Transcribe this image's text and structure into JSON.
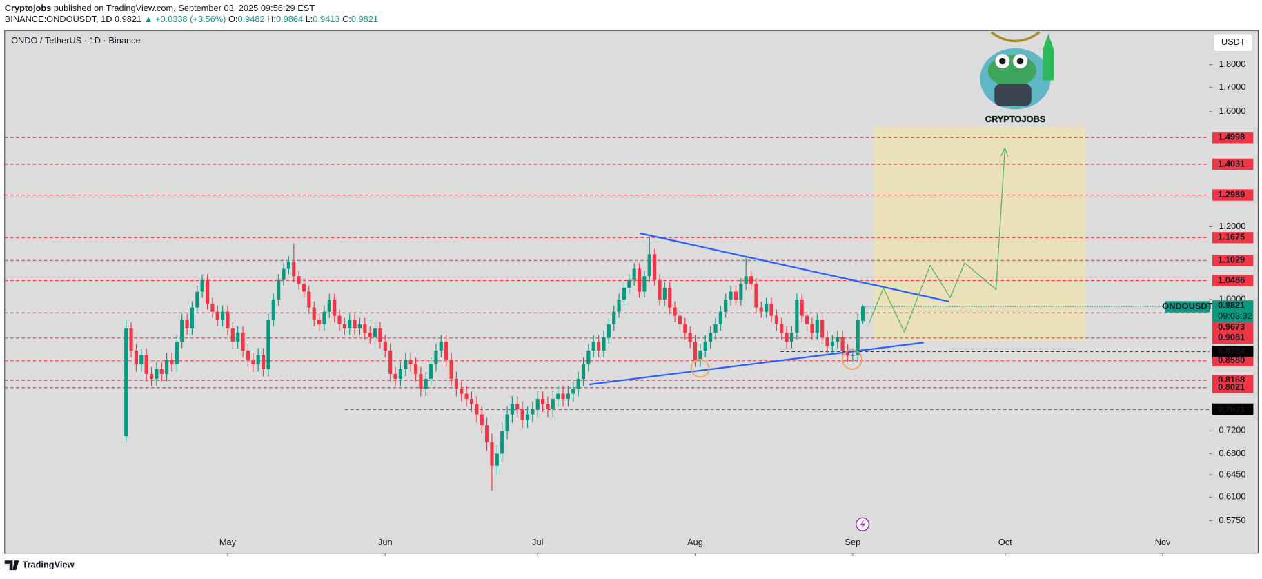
{
  "header": {
    "author": "Cryptojobs",
    "published": "published on TradingView.com, September 03, 2025 09:56:29 EST",
    "symbol": "BINANCE:ONDOUSDT, 1D",
    "change": "▲ +0.0338 (+3.56%)",
    "ohlc_labels": [
      "O:",
      "H:",
      "L:",
      "C:"
    ]
  },
  "footer": "TradingView",
  "chart_data": {
    "type": "candlestick",
    "title": "ONDO / TetherUS · 1D · Binance",
    "currency": "USDT",
    "symbol_tag": "ONDOUSDT",
    "countdown": "09:03:32",
    "logo_text": "CRYPTOJOBS",
    "up_color": "#089981",
    "down_color": "#f23645",
    "yscale": "log",
    "ylim": [
      0.53,
      1.96
    ],
    "yticks": [
      {
        "value": 1.8,
        "label": "1.8000"
      },
      {
        "value": 1.7,
        "label": "1.7000"
      },
      {
        "value": 1.6,
        "label": "1.6000"
      },
      {
        "value": 1.2,
        "label": "1.2000"
      },
      {
        "value": 1.0,
        "label": "1.0000"
      },
      {
        "value": 0.72,
        "label": "0.7200"
      },
      {
        "value": 0.68,
        "label": "0.6800"
      },
      {
        "value": 0.645,
        "label": "0.6450"
      },
      {
        "value": 0.61,
        "label": "0.6100"
      },
      {
        "value": 0.575,
        "label": "0.5750"
      }
    ],
    "months": [
      "May",
      "Jun",
      "Jul",
      "Aug",
      "Sep",
      "Oct",
      "Nov"
    ],
    "levels": [
      {
        "value": 1.4998,
        "color": "#f23645"
      },
      {
        "value": 1.4031,
        "color": "#f23645"
      },
      {
        "value": 1.2989,
        "color": "#f23645"
      },
      {
        "value": 1.1675,
        "color": "#f23645"
      },
      {
        "value": 1.1029,
        "color": "#f23645"
      },
      {
        "value": 1.0486,
        "color": "#f23645"
      },
      {
        "value": 0.9673,
        "color": "#f23645"
      },
      {
        "value": 0.9081,
        "color": "#f23645"
      },
      {
        "value": 0.858,
        "label": "0.8580",
        "color": "#f23645"
      },
      {
        "value": 0.8168,
        "color": "#f23645"
      },
      {
        "value": 0.8021,
        "color": "#f23645"
      },
      {
        "value": 0.8784,
        "color": "#000000"
      },
      {
        "value": 0.7601,
        "color": "#000000"
      }
    ],
    "candles": [
      [
        0.71,
        0.95,
        0.7,
        0.93
      ],
      [
        0.93,
        0.945,
        0.865,
        0.88
      ],
      [
        0.88,
        0.895,
        0.835,
        0.85
      ],
      [
        0.85,
        0.885,
        0.835,
        0.87
      ],
      [
        0.87,
        0.885,
        0.815,
        0.83
      ],
      [
        0.83,
        0.845,
        0.805,
        0.82
      ],
      [
        0.82,
        0.855,
        0.805,
        0.84
      ],
      [
        0.84,
        0.855,
        0.815,
        0.83
      ],
      [
        0.83,
        0.875,
        0.815,
        0.86
      ],
      [
        0.86,
        0.875,
        0.835,
        0.85
      ],
      [
        0.85,
        0.915,
        0.835,
        0.9
      ],
      [
        0.9,
        0.965,
        0.885,
        0.95
      ],
      [
        0.95,
        0.965,
        0.915,
        0.93
      ],
      [
        0.93,
        0.995,
        0.915,
        0.98
      ],
      [
        0.98,
        1.035,
        0.965,
        1.02
      ],
      [
        1.02,
        1.065,
        1.005,
        1.05
      ],
      [
        1.05,
        1.065,
        0.975,
        0.99
      ],
      [
        0.99,
        1.005,
        0.955,
        0.97
      ],
      [
        0.97,
        0.985,
        0.935,
        0.95
      ],
      [
        0.95,
        0.985,
        0.935,
        0.97
      ],
      [
        0.97,
        0.985,
        0.915,
        0.93
      ],
      [
        0.93,
        0.945,
        0.885,
        0.9
      ],
      [
        0.9,
        0.935,
        0.885,
        0.92
      ],
      [
        0.92,
        0.935,
        0.865,
        0.88
      ],
      [
        0.88,
        0.895,
        0.845,
        0.86
      ],
      [
        0.86,
        0.875,
        0.835,
        0.85
      ],
      [
        0.85,
        0.885,
        0.835,
        0.87
      ],
      [
        0.87,
        0.885,
        0.825,
        0.84
      ],
      [
        0.84,
        0.965,
        0.825,
        0.95
      ],
      [
        0.95,
        1.015,
        0.935,
        1.0
      ],
      [
        1.0,
        1.065,
        0.985,
        1.05
      ],
      [
        1.05,
        1.095,
        1.035,
        1.08
      ],
      [
        1.08,
        1.115,
        1.065,
        1.1
      ],
      [
        1.1,
        1.15,
        1.045,
        1.06
      ],
      [
        1.06,
        1.075,
        1.025,
        1.04
      ],
      [
        1.04,
        1.055,
        1.005,
        1.02
      ],
      [
        1.02,
        1.035,
        0.965,
        0.98
      ],
      [
        0.98,
        0.995,
        0.935,
        0.95
      ],
      [
        0.95,
        0.965,
        0.925,
        0.94
      ],
      [
        0.94,
        0.985,
        0.925,
        0.97
      ],
      [
        0.97,
        1.015,
        0.955,
        1.0
      ],
      [
        1.0,
        1.015,
        0.945,
        0.96
      ],
      [
        0.96,
        0.975,
        0.925,
        0.94
      ],
      [
        0.94,
        0.955,
        0.915,
        0.93
      ],
      [
        0.93,
        0.965,
        0.915,
        0.95
      ],
      [
        0.95,
        0.965,
        0.915,
        0.93
      ],
      [
        0.93,
        0.955,
        0.915,
        0.94
      ],
      [
        0.94,
        0.955,
        0.905,
        0.92
      ],
      [
        0.92,
        0.935,
        0.895,
        0.91
      ],
      [
        0.91,
        0.945,
        0.895,
        0.93
      ],
      [
        0.93,
        0.945,
        0.885,
        0.9
      ],
      [
        0.9,
        0.915,
        0.865,
        0.88
      ],
      [
        0.88,
        0.895,
        0.815,
        0.83
      ],
      [
        0.83,
        0.845,
        0.805,
        0.82
      ],
      [
        0.82,
        0.855,
        0.805,
        0.84
      ],
      [
        0.84,
        0.875,
        0.825,
        0.86
      ],
      [
        0.86,
        0.875,
        0.835,
        0.85
      ],
      [
        0.85,
        0.865,
        0.815,
        0.83
      ],
      [
        0.83,
        0.845,
        0.785,
        0.8
      ],
      [
        0.8,
        0.835,
        0.785,
        0.82
      ],
      [
        0.82,
        0.865,
        0.805,
        0.85
      ],
      [
        0.85,
        0.895,
        0.835,
        0.88
      ],
      [
        0.88,
        0.915,
        0.865,
        0.9
      ],
      [
        0.9,
        0.915,
        0.845,
        0.86
      ],
      [
        0.86,
        0.875,
        0.805,
        0.82
      ],
      [
        0.82,
        0.835,
        0.785,
        0.8
      ],
      [
        0.8,
        0.815,
        0.775,
        0.79
      ],
      [
        0.79,
        0.805,
        0.765,
        0.78
      ],
      [
        0.78,
        0.795,
        0.755,
        0.77
      ],
      [
        0.77,
        0.785,
        0.735,
        0.75
      ],
      [
        0.75,
        0.765,
        0.715,
        0.73
      ],
      [
        0.73,
        0.745,
        0.685,
        0.7
      ],
      [
        0.7,
        0.715,
        0.62,
        0.66
      ],
      [
        0.66,
        0.695,
        0.645,
        0.68
      ],
      [
        0.68,
        0.735,
        0.665,
        0.72
      ],
      [
        0.72,
        0.765,
        0.705,
        0.75
      ],
      [
        0.75,
        0.785,
        0.735,
        0.77
      ],
      [
        0.77,
        0.785,
        0.745,
        0.76
      ],
      [
        0.76,
        0.775,
        0.725,
        0.74
      ],
      [
        0.74,
        0.765,
        0.725,
        0.75
      ],
      [
        0.75,
        0.775,
        0.735,
        0.76
      ],
      [
        0.76,
        0.795,
        0.745,
        0.78
      ],
      [
        0.78,
        0.795,
        0.755,
        0.77
      ],
      [
        0.77,
        0.785,
        0.745,
        0.76
      ],
      [
        0.76,
        0.795,
        0.745,
        0.78
      ],
      [
        0.78,
        0.805,
        0.765,
        0.79
      ],
      [
        0.79,
        0.805,
        0.765,
        0.78
      ],
      [
        0.78,
        0.805,
        0.765,
        0.79
      ],
      [
        0.79,
        0.815,
        0.775,
        0.8
      ],
      [
        0.8,
        0.835,
        0.785,
        0.82
      ],
      [
        0.82,
        0.865,
        0.805,
        0.85
      ],
      [
        0.85,
        0.895,
        0.835,
        0.88
      ],
      [
        0.88,
        0.915,
        0.865,
        0.9
      ],
      [
        0.9,
        0.915,
        0.865,
        0.88
      ],
      [
        0.88,
        0.925,
        0.865,
        0.91
      ],
      [
        0.91,
        0.955,
        0.895,
        0.94
      ],
      [
        0.94,
        0.985,
        0.925,
        0.97
      ],
      [
        0.97,
        1.015,
        0.955,
        1.0
      ],
      [
        1.0,
        1.045,
        0.985,
        1.03
      ],
      [
        1.03,
        1.065,
        1.015,
        1.05
      ],
      [
        1.05,
        1.095,
        1.035,
        1.08
      ],
      [
        1.08,
        1.095,
        1.005,
        1.02
      ],
      [
        1.02,
        1.075,
        1.005,
        1.06
      ],
      [
        1.06,
        1.17,
        1.045,
        1.12
      ],
      [
        1.12,
        1.135,
        1.035,
        1.05
      ],
      [
        1.05,
        1.065,
        0.985,
        1.0
      ],
      [
        1.0,
        1.045,
        0.985,
        1.03
      ],
      [
        1.03,
        1.045,
        0.965,
        0.98
      ],
      [
        0.98,
        0.995,
        0.945,
        0.96
      ],
      [
        0.96,
        0.975,
        0.925,
        0.94
      ],
      [
        0.94,
        0.955,
        0.905,
        0.92
      ],
      [
        0.92,
        0.935,
        0.885,
        0.9
      ],
      [
        0.9,
        0.915,
        0.845,
        0.86
      ],
      [
        0.86,
        0.895,
        0.845,
        0.88
      ],
      [
        0.88,
        0.915,
        0.865,
        0.9
      ],
      [
        0.9,
        0.935,
        0.885,
        0.92
      ],
      [
        0.92,
        0.955,
        0.905,
        0.94
      ],
      [
        0.94,
        0.985,
        0.925,
        0.97
      ],
      [
        0.97,
        1.015,
        0.955,
        1.0
      ],
      [
        1.0,
        1.035,
        0.985,
        1.02
      ],
      [
        1.02,
        1.035,
        0.985,
        1.0
      ],
      [
        1.0,
        1.055,
        0.985,
        1.04
      ],
      [
        1.04,
        1.11,
        1.025,
        1.06
      ],
      [
        1.06,
        1.075,
        1.025,
        1.04
      ],
      [
        1.04,
        1.055,
        0.965,
        0.98
      ],
      [
        0.98,
        0.995,
        0.955,
        0.97
      ],
      [
        0.97,
        1.005,
        0.955,
        0.99
      ],
      [
        0.99,
        1.005,
        0.945,
        0.96
      ],
      [
        0.96,
        0.975,
        0.925,
        0.94
      ],
      [
        0.94,
        0.955,
        0.905,
        0.92
      ],
      [
        0.92,
        0.935,
        0.885,
        0.9
      ],
      [
        0.9,
        0.935,
        0.885,
        0.92
      ],
      [
        0.92,
        1.015,
        0.905,
        1.0
      ],
      [
        1.0,
        1.015,
        0.945,
        0.96
      ],
      [
        0.96,
        0.975,
        0.925,
        0.94
      ],
      [
        0.94,
        0.955,
        0.905,
        0.92
      ],
      [
        0.92,
        0.965,
        0.905,
        0.95
      ],
      [
        0.95,
        0.965,
        0.895,
        0.91
      ],
      [
        0.91,
        0.925,
        0.875,
        0.89
      ],
      [
        0.89,
        0.915,
        0.875,
        0.9
      ],
      [
        0.9,
        0.925,
        0.885,
        0.91
      ],
      [
        0.91,
        0.925,
        0.865,
        0.88
      ],
      [
        0.88,
        0.895,
        0.855,
        0.87
      ],
      [
        0.87,
        0.885,
        0.855,
        0.87
      ],
      [
        0.87,
        0.965,
        0.855,
        0.95
      ],
      [
        0.9482,
        0.9864,
        0.9413,
        0.9821
      ]
    ]
  }
}
